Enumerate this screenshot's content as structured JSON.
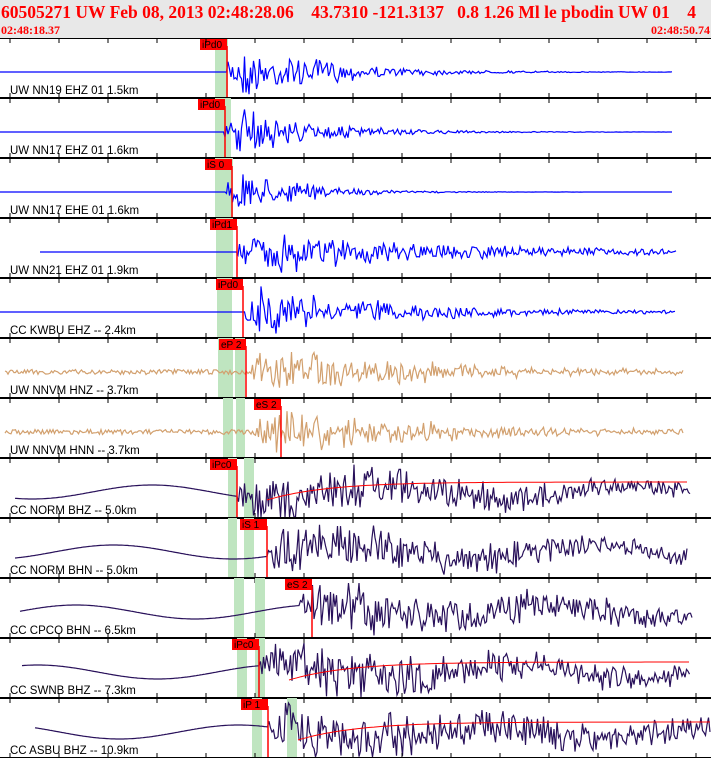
{
  "header": {
    "title": "60505271 UW Feb 08, 2013 02:48:28.06    43.7310 -121.3137   0.8 1.26 Ml le pbodin UW 01    4",
    "start_time": "02:48:18.37",
    "end_time": "02:48:50.74"
  },
  "colors": {
    "blue": "#0000ff",
    "tan": "#d2a06e",
    "dark": "#28105a",
    "pick": "#ff0000",
    "band": "#bfe5c0"
  },
  "traces": [
    {
      "label": "UW NN19 EHZ 01 1.5km",
      "pick": "iPd0",
      "color": "blue"
    },
    {
      "label": "UW NN17 EHZ 01 1.6km",
      "pick": "iPd0",
      "color": "blue"
    },
    {
      "label": "UW NN17 EHE 01 1.6km",
      "pick": "iS 0",
      "color": "blue"
    },
    {
      "label": "UW NN21 EHZ 01 1.9km",
      "pick": "iPd1",
      "color": "blue"
    },
    {
      "label": "CC KWBU EHZ -- 2.4km",
      "pick": "iPd0",
      "color": "blue"
    },
    {
      "label": "UW NNVM HNZ -- 3.7km",
      "pick": "eP 2",
      "color": "tan"
    },
    {
      "label": "UW NNVM HNN -- 3.7km",
      "pick": "eS 2",
      "color": "tan"
    },
    {
      "label": "CC NORM BHZ -- 5.0km",
      "pick": "iPc0",
      "color": "dark"
    },
    {
      "label": "CC NORM BHN -- 5.0km",
      "pick": "iS 1",
      "color": "dark"
    },
    {
      "label": "CC CPCO BHN -- 6.5km",
      "pick": "eS 2",
      "color": "dark"
    },
    {
      "label": "CC SWNB BHZ -- 7.3km",
      "pick": "iPc0",
      "color": "dark"
    },
    {
      "label": "CC ASBU BHZ -- 10.9km",
      "pick": "iP 1",
      "color": "dark"
    }
  ]
}
